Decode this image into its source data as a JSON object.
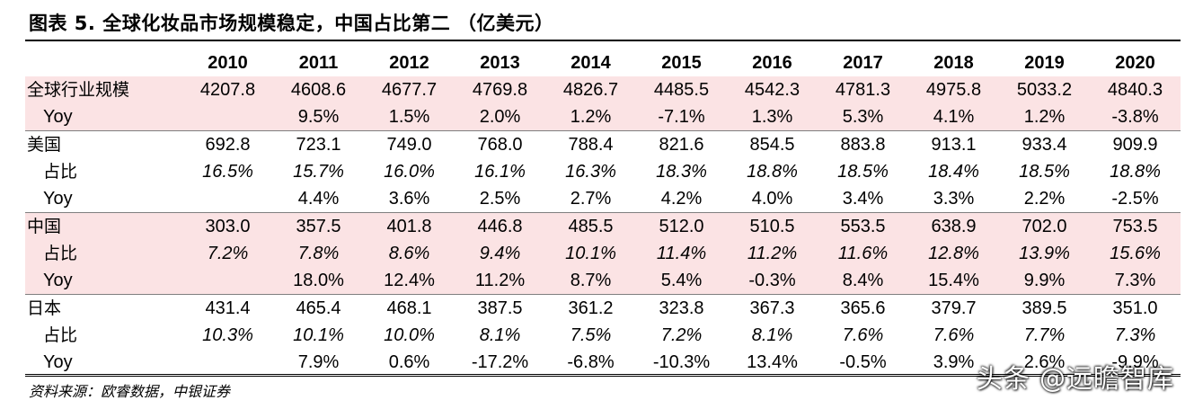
{
  "title": "图表 5. 全球化妆品市场规模稳定，中国占比第二 （亿美元）",
  "source": "资料来源：欧睿数据，中银证券",
  "watermark": "头条 @远瞻智库",
  "colors": {
    "highlight": "#fbe3e4"
  },
  "table": {
    "years": [
      "2010",
      "2011",
      "2012",
      "2013",
      "2014",
      "2015",
      "2016",
      "2017",
      "2018",
      "2019",
      "2020"
    ],
    "rows": [
      {
        "label": "全球行业规模",
        "kind": "main",
        "pink": true,
        "values": [
          "4207.8",
          "4608.6",
          "4677.7",
          "4769.8",
          "4826.7",
          "4485.5",
          "4542.3",
          "4781.3",
          "4975.8",
          "5033.2",
          "4840.3"
        ]
      },
      {
        "label": "Yoy",
        "kind": "yoy",
        "pink": true,
        "values": [
          "",
          "9.5%",
          "1.5%",
          "2.0%",
          "1.2%",
          "-7.1%",
          "1.3%",
          "5.3%",
          "4.1%",
          "1.2%",
          "-3.8%"
        ]
      },
      {
        "label": "美国",
        "kind": "main",
        "pink": false,
        "values": [
          "692.8",
          "723.1",
          "749.0",
          "768.0",
          "788.4",
          "821.6",
          "854.5",
          "883.8",
          "913.1",
          "933.4",
          "909.9"
        ]
      },
      {
        "label": "占比",
        "kind": "share",
        "pink": false,
        "values": [
          "16.5%",
          "15.7%",
          "16.0%",
          "16.1%",
          "16.3%",
          "18.3%",
          "18.8%",
          "18.5%",
          "18.4%",
          "18.5%",
          "18.8%"
        ]
      },
      {
        "label": "Yoy",
        "kind": "yoy",
        "pink": false,
        "values": [
          "",
          "4.4%",
          "3.6%",
          "2.5%",
          "2.7%",
          "4.2%",
          "4.0%",
          "3.4%",
          "3.3%",
          "2.2%",
          "-2.5%"
        ]
      },
      {
        "label": "中国",
        "kind": "main",
        "pink": true,
        "values": [
          "303.0",
          "357.5",
          "401.8",
          "446.8",
          "485.5",
          "512.0",
          "510.5",
          "553.5",
          "638.9",
          "702.0",
          "753.5"
        ]
      },
      {
        "label": "占比",
        "kind": "share",
        "pink": true,
        "values": [
          "7.2%",
          "7.8%",
          "8.6%",
          "9.4%",
          "10.1%",
          "11.4%",
          "11.2%",
          "11.6%",
          "12.8%",
          "13.9%",
          "15.6%"
        ]
      },
      {
        "label": "Yoy",
        "kind": "yoy",
        "pink": true,
        "values": [
          "",
          "18.0%",
          "12.4%",
          "11.2%",
          "8.7%",
          "5.4%",
          "-0.3%",
          "8.4%",
          "15.4%",
          "9.9%",
          "7.3%"
        ]
      },
      {
        "label": "日本",
        "kind": "main",
        "pink": false,
        "values": [
          "431.4",
          "465.4",
          "468.1",
          "387.5",
          "361.2",
          "323.8",
          "367.3",
          "365.6",
          "379.7",
          "389.5",
          "351.0"
        ]
      },
      {
        "label": "占比",
        "kind": "share",
        "pink": false,
        "values": [
          "10.3%",
          "10.1%",
          "10.0%",
          "8.1%",
          "7.5%",
          "7.2%",
          "8.1%",
          "7.6%",
          "7.6%",
          "7.7%",
          "7.3%"
        ]
      },
      {
        "label": "Yoy",
        "kind": "yoy",
        "pink": false,
        "values": [
          "",
          "7.9%",
          "0.6%",
          "-17.2%",
          "-6.8%",
          "-10.3%",
          "13.4%",
          "-0.5%",
          "3.9%",
          "2.6%",
          "-9.9%"
        ]
      }
    ]
  }
}
